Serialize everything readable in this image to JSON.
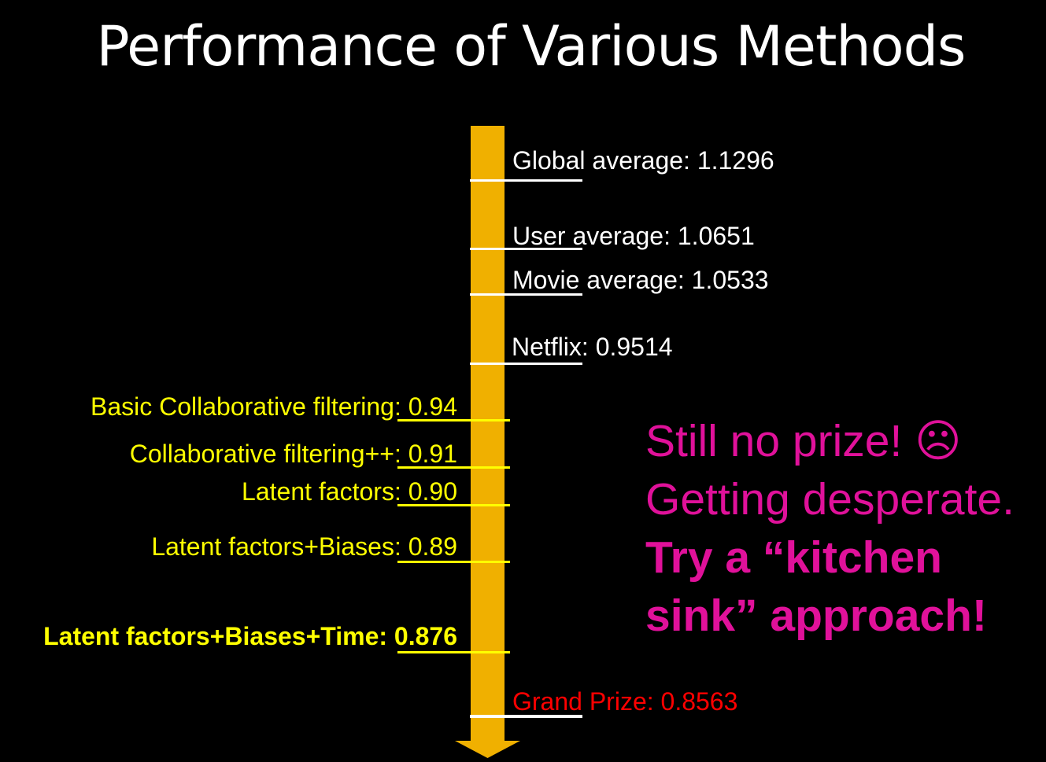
{
  "title": "Performance of Various Methods",
  "colors": {
    "background": "#000000",
    "arrow": "#f0b000",
    "white_text": "#ffffff",
    "yellow_text": "#ffff00",
    "red_text": "#ff0000",
    "callout": "#e0119a"
  },
  "right_labels": [
    {
      "name": "Global average",
      "value": "1.1296",
      "text": "Global average: 1.1296"
    },
    {
      "name": "User average",
      "value": "1.0651",
      "text": "User average: 1.0651"
    },
    {
      "name": "Movie average",
      "value": "1.0533",
      "text": "Movie average: 1.0533"
    },
    {
      "name": "Netflix",
      "value": "0.9514",
      "text": "Netflix: 0.9514"
    }
  ],
  "left_labels": [
    {
      "name": "Basic Collaborative filtering:",
      "value": "0.94"
    },
    {
      "name": "Collaborative filtering++:",
      "value": "0.91"
    },
    {
      "name": "Latent factors:",
      "value": "0.90"
    },
    {
      "name": "Latent factors+Biases:",
      "value": "0.89"
    },
    {
      "name": "Latent factors+Biases+Time:",
      "value": "0.876"
    }
  ],
  "grand_prize": {
    "text": "Grand Prize: 0.8563"
  },
  "callout": {
    "line1": "Still no prize! ☹",
    "line2": "Getting desperate.",
    "line3": "Try a “kitchen",
    "line4": "sink” approach!"
  }
}
